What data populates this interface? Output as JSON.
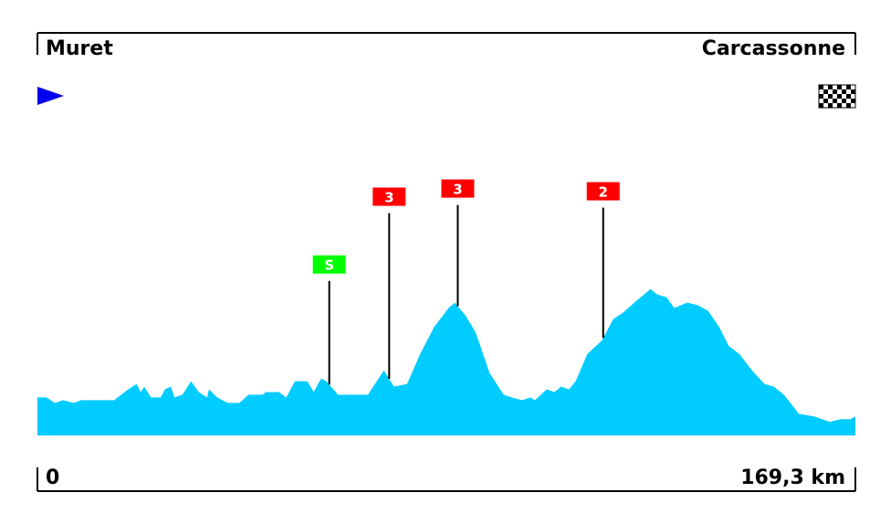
{
  "chart_data": {
    "type": "area",
    "start_city": "Muret",
    "finish_city": "Carcassonne",
    "distance_start": "0",
    "distance_end": "169,3 km",
    "fill_color": "#00ccff",
    "start_flag_color": "#0000ee",
    "x_range": [
      0,
      169.3
    ],
    "profile": [
      [
        0,
        0.14
      ],
      [
        1.9,
        0.14
      ],
      [
        3.6,
        0.12
      ],
      [
        5.3,
        0.13
      ],
      [
        7.6,
        0.12
      ],
      [
        9.0,
        0.13
      ],
      [
        11.2,
        0.13
      ],
      [
        15.9,
        0.13
      ],
      [
        18.8,
        0.17
      ],
      [
        20.5,
        0.19
      ],
      [
        21.4,
        0.16
      ],
      [
        22.1,
        0.18
      ],
      [
        23.5,
        0.14
      ],
      [
        25.5,
        0.14
      ],
      [
        26.4,
        0.17
      ],
      [
        27.6,
        0.18
      ],
      [
        28.4,
        0.14
      ],
      [
        30.0,
        0.15
      ],
      [
        31.8,
        0.2
      ],
      [
        33.4,
        0.16
      ],
      [
        35.1,
        0.14
      ],
      [
        35.5,
        0.17
      ],
      [
        37.2,
        0.14
      ],
      [
        39.4,
        0.12
      ],
      [
        41.8,
        0.12
      ],
      [
        43.7,
        0.15
      ],
      [
        46.6,
        0.15
      ],
      [
        47.3,
        0.16
      ],
      [
        50.0,
        0.16
      ],
      [
        51.5,
        0.14
      ],
      [
        53.3,
        0.2
      ],
      [
        55.9,
        0.2
      ],
      [
        57.2,
        0.16
      ],
      [
        58.7,
        0.21
      ],
      [
        59.8,
        0.2
      ],
      [
        62.2,
        0.15
      ],
      [
        65.0,
        0.15
      ],
      [
        68.4,
        0.15
      ],
      [
        71.7,
        0.24
      ],
      [
        73.8,
        0.18
      ],
      [
        76.5,
        0.19
      ],
      [
        79.2,
        0.3
      ],
      [
        82.1,
        0.4
      ],
      [
        85.1,
        0.47
      ],
      [
        86.4,
        0.49
      ],
      [
        88.7,
        0.44
      ],
      [
        90.7,
        0.38
      ],
      [
        93.6,
        0.23
      ],
      [
        96.5,
        0.15
      ],
      [
        98.2,
        0.14
      ],
      [
        100.3,
        0.13
      ],
      [
        102.0,
        0.14
      ],
      [
        103.0,
        0.13
      ],
      [
        105.4,
        0.17
      ],
      [
        107.0,
        0.16
      ],
      [
        108.4,
        0.18
      ],
      [
        110.0,
        0.17
      ],
      [
        111.4,
        0.2
      ],
      [
        113.8,
        0.3
      ],
      [
        116.8,
        0.35
      ],
      [
        119.2,
        0.43
      ],
      [
        121.0,
        0.45
      ],
      [
        124.2,
        0.5
      ],
      [
        126.9,
        0.54
      ],
      [
        128.3,
        0.52
      ],
      [
        130.2,
        0.51
      ],
      [
        131.8,
        0.47
      ],
      [
        134.5,
        0.49
      ],
      [
        136.7,
        0.48
      ],
      [
        138.8,
        0.46
      ],
      [
        141.1,
        0.4
      ],
      [
        143.1,
        0.33
      ],
      [
        145.3,
        0.3
      ],
      [
        147.9,
        0.24
      ],
      [
        150.5,
        0.19
      ],
      [
        152.4,
        0.18
      ],
      [
        154.5,
        0.15
      ],
      [
        157.6,
        0.08
      ],
      [
        160.8,
        0.07
      ],
      [
        164.0,
        0.05
      ],
      [
        166.2,
        0.06
      ],
      [
        168.2,
        0.06
      ],
      [
        169.3,
        0.07
      ]
    ],
    "markers": [
      {
        "km": 60.4,
        "label": "S",
        "color": "#00ff00",
        "pole_top": 0.57
      },
      {
        "km": 72.8,
        "label": "3",
        "color": "#ff0000",
        "pole_top": 0.82
      },
      {
        "km": 87.0,
        "label": "3",
        "color": "#ff0000",
        "pole_top": 0.85
      },
      {
        "km": 117.1,
        "label": "2",
        "color": "#ff0000",
        "pole_top": 0.84
      }
    ]
  }
}
